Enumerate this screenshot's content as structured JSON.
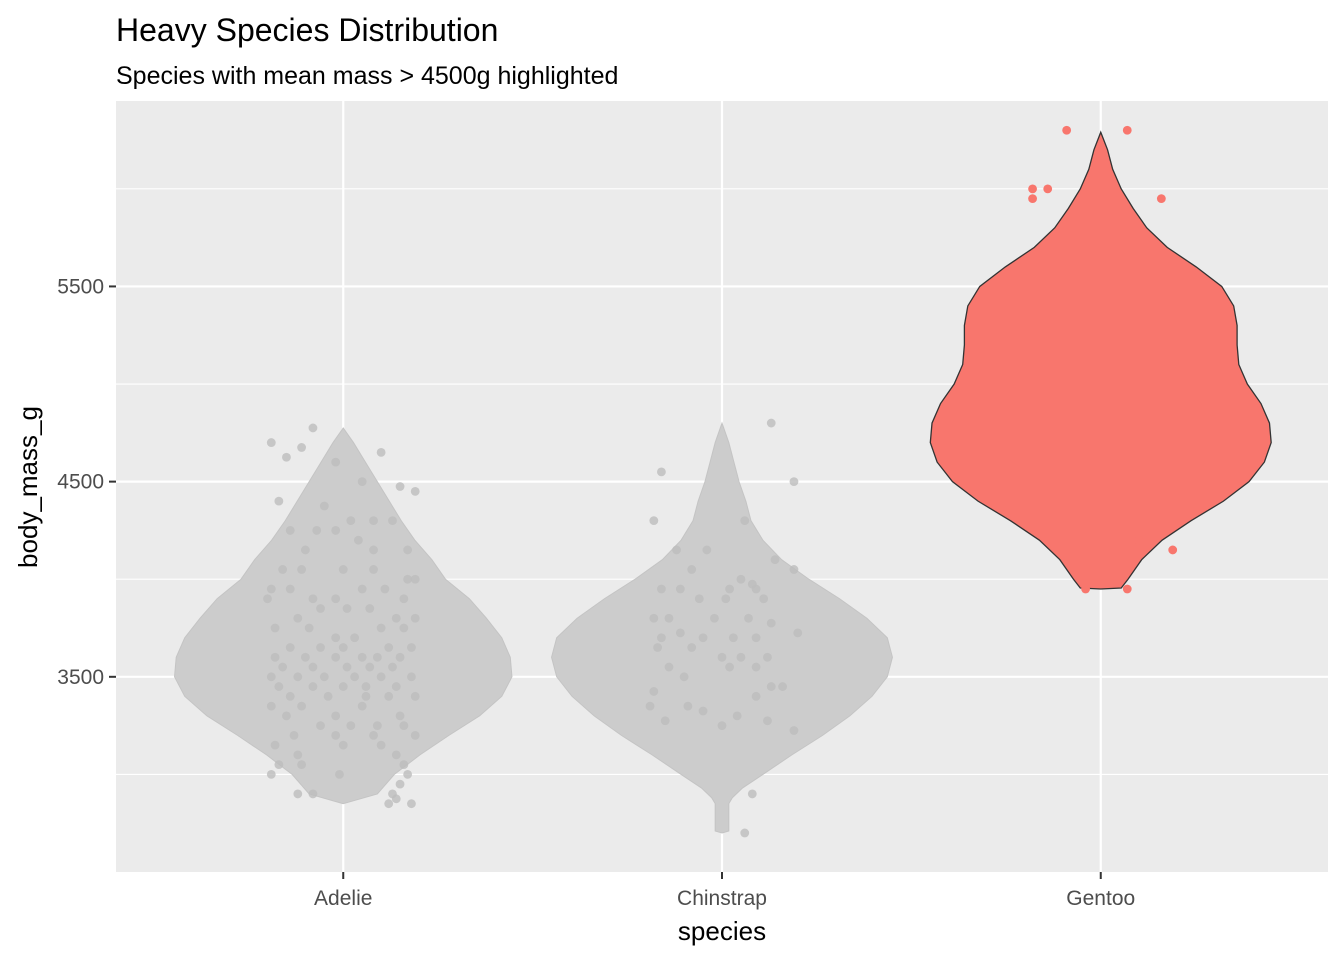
{
  "chart_data": {
    "type": "violin",
    "title": "Heavy Species Distribution",
    "subtitle": "Species with mean mass > 4500g highlighted",
    "xlabel": "species",
    "ylabel": "body_mass_g",
    "categories": [
      "Adelie",
      "Chinstrap",
      "Gentoo"
    ],
    "ylim": [
      2500,
      6450
    ],
    "yticks": [
      3500,
      4500,
      5500
    ],
    "grid": true,
    "colors": {
      "highlight": "#F8766D",
      "muted": "#CCCCCC",
      "panel": "#EBEBEB",
      "grid": "#FFFFFF"
    },
    "groups": [
      {
        "species": "Adelie",
        "highlighted": false,
        "violin": [
          [
            2850,
            0.0
          ],
          [
            2900,
            0.2
          ],
          [
            3000,
            0.3
          ],
          [
            3100,
            0.45
          ],
          [
            3200,
            0.62
          ],
          [
            3300,
            0.8
          ],
          [
            3400,
            0.93
          ],
          [
            3500,
            0.99
          ],
          [
            3600,
            0.98
          ],
          [
            3700,
            0.93
          ],
          [
            3800,
            0.84
          ],
          [
            3900,
            0.74
          ],
          [
            4000,
            0.6
          ],
          [
            4100,
            0.52
          ],
          [
            4200,
            0.42
          ],
          [
            4300,
            0.34
          ],
          [
            4400,
            0.27
          ],
          [
            4500,
            0.2
          ],
          [
            4600,
            0.13
          ],
          [
            4700,
            0.06
          ],
          [
            4775,
            0.0
          ]
        ],
        "points": [
          [
            -0.19,
            4700
          ],
          [
            -0.15,
            4625
          ],
          [
            -0.11,
            4675
          ],
          [
            -0.08,
            4775
          ],
          [
            -0.02,
            4600
          ],
          [
            0.1,
            4650
          ],
          [
            0.15,
            4475
          ],
          [
            0.19,
            4450
          ],
          [
            -0.17,
            4400
          ],
          [
            -0.05,
            4375
          ],
          [
            0.05,
            4500
          ],
          [
            -0.14,
            4250
          ],
          [
            -0.07,
            4250
          ],
          [
            0.02,
            4300
          ],
          [
            0.08,
            4300
          ],
          [
            0.13,
            4300
          ],
          [
            -0.02,
            4250
          ],
          [
            0.04,
            4200
          ],
          [
            0.17,
            4150
          ],
          [
            -0.1,
            4150
          ],
          [
            0.08,
            4150
          ],
          [
            -0.16,
            4050
          ],
          [
            -0.11,
            4050
          ],
          [
            0.0,
            4050
          ],
          [
            0.08,
            4050
          ],
          [
            0.17,
            4000
          ],
          [
            0.19,
            4000
          ],
          [
            -0.19,
            3950
          ],
          [
            -0.14,
            3950
          ],
          [
            -0.08,
            3900
          ],
          [
            -0.02,
            3900
          ],
          [
            0.05,
            3950
          ],
          [
            0.11,
            3950
          ],
          [
            0.16,
            3900
          ],
          [
            -0.2,
            3900
          ],
          [
            -0.12,
            3800
          ],
          [
            -0.06,
            3850
          ],
          [
            0.01,
            3850
          ],
          [
            0.07,
            3850
          ],
          [
            0.14,
            3800
          ],
          [
            0.19,
            3800
          ],
          [
            -0.18,
            3750
          ],
          [
            -0.09,
            3750
          ],
          [
            -0.02,
            3700
          ],
          [
            0.03,
            3700
          ],
          [
            0.1,
            3750
          ],
          [
            0.16,
            3750
          ],
          [
            -0.14,
            3650
          ],
          [
            -0.06,
            3650
          ],
          [
            0.0,
            3650
          ],
          [
            0.05,
            3600
          ],
          [
            0.12,
            3650
          ],
          [
            0.18,
            3650
          ],
          [
            -0.18,
            3600
          ],
          [
            -0.1,
            3600
          ],
          [
            -0.02,
            3600
          ],
          [
            0.09,
            3600
          ],
          [
            0.15,
            3600
          ],
          [
            -0.16,
            3550
          ],
          [
            -0.08,
            3550
          ],
          [
            0.01,
            3550
          ],
          [
            0.07,
            3550
          ],
          [
            0.13,
            3550
          ],
          [
            -0.19,
            3500
          ],
          [
            -0.12,
            3500
          ],
          [
            -0.05,
            3500
          ],
          [
            0.03,
            3500
          ],
          [
            0.1,
            3500
          ],
          [
            0.18,
            3500
          ],
          [
            -0.17,
            3450
          ],
          [
            -0.08,
            3450
          ],
          [
            0.0,
            3450
          ],
          [
            0.06,
            3450
          ],
          [
            0.14,
            3450
          ],
          [
            -0.14,
            3400
          ],
          [
            -0.04,
            3400
          ],
          [
            0.06,
            3400
          ],
          [
            0.12,
            3400
          ],
          [
            0.19,
            3400
          ],
          [
            -0.19,
            3350
          ],
          [
            -0.11,
            3350
          ],
          [
            -0.02,
            3300
          ],
          [
            0.05,
            3350
          ],
          [
            0.15,
            3300
          ],
          [
            -0.15,
            3300
          ],
          [
            -0.06,
            3250
          ],
          [
            0.02,
            3250
          ],
          [
            0.09,
            3250
          ],
          [
            0.16,
            3250
          ],
          [
            -0.13,
            3200
          ],
          [
            -0.02,
            3200
          ],
          [
            0.08,
            3200
          ],
          [
            0.19,
            3200
          ],
          [
            -0.18,
            3150
          ],
          [
            -0.12,
            3100
          ],
          [
            0.0,
            3150
          ],
          [
            0.1,
            3150
          ],
          [
            0.14,
            3100
          ],
          [
            -0.17,
            3050
          ],
          [
            -0.11,
            3050
          ],
          [
            -0.19,
            3000
          ],
          [
            0.16,
            3050
          ],
          [
            0.17,
            3000
          ],
          [
            -0.01,
            3000
          ],
          [
            0.15,
            2950
          ],
          [
            -0.12,
            2900
          ],
          [
            -0.08,
            2900
          ],
          [
            0.13,
            2900
          ],
          [
            0.14,
            2875
          ],
          [
            0.12,
            2850
          ],
          [
            0.18,
            2850
          ]
        ]
      },
      {
        "species": "Chinstrap",
        "highlighted": false,
        "violin": [
          [
            2700,
            0.0
          ],
          [
            2710,
            0.04
          ],
          [
            2800,
            0.04
          ],
          [
            2850,
            0.04
          ],
          [
            2880,
            0.06
          ],
          [
            2930,
            0.12
          ],
          [
            3000,
            0.24
          ],
          [
            3100,
            0.41
          ],
          [
            3200,
            0.59
          ],
          [
            3300,
            0.75
          ],
          [
            3400,
            0.88
          ],
          [
            3500,
            0.97
          ],
          [
            3600,
            1.0
          ],
          [
            3700,
            0.97
          ],
          [
            3800,
            0.85
          ],
          [
            3900,
            0.69
          ],
          [
            4000,
            0.51
          ],
          [
            4100,
            0.35
          ],
          [
            4200,
            0.24
          ],
          [
            4300,
            0.17
          ],
          [
            4400,
            0.14
          ],
          [
            4500,
            0.1
          ],
          [
            4600,
            0.07
          ],
          [
            4700,
            0.04
          ],
          [
            4800,
            0.0
          ]
        ],
        "points": [
          [
            -0.16,
            4550
          ],
          [
            0.13,
            4800
          ],
          [
            0.19,
            4500
          ],
          [
            -0.18,
            4300
          ],
          [
            0.06,
            4300
          ],
          [
            -0.12,
            4150
          ],
          [
            -0.04,
            4150
          ],
          [
            0.14,
            4100
          ],
          [
            0.19,
            4050
          ],
          [
            -0.08,
            4050
          ],
          [
            0.05,
            4000
          ],
          [
            0.08,
            3975
          ],
          [
            -0.16,
            3950
          ],
          [
            -0.11,
            3950
          ],
          [
            0.02,
            3950
          ],
          [
            0.09,
            3950
          ],
          [
            -0.06,
            3900
          ],
          [
            0.01,
            3900
          ],
          [
            0.11,
            3900
          ],
          [
            -0.18,
            3800
          ],
          [
            -0.14,
            3800
          ],
          [
            -0.02,
            3800
          ],
          [
            0.07,
            3800
          ],
          [
            0.13,
            3775
          ],
          [
            0.2,
            3725
          ],
          [
            -0.16,
            3700
          ],
          [
            -0.11,
            3725
          ],
          [
            -0.05,
            3700
          ],
          [
            0.03,
            3700
          ],
          [
            0.09,
            3700
          ],
          [
            -0.17,
            3650
          ],
          [
            -0.08,
            3650
          ],
          [
            0.0,
            3600
          ],
          [
            0.05,
            3600
          ],
          [
            0.12,
            3600
          ],
          [
            -0.14,
            3550
          ],
          [
            0.02,
            3550
          ],
          [
            0.09,
            3550
          ],
          [
            -0.1,
            3500
          ],
          [
            0.13,
            3450
          ],
          [
            0.16,
            3450
          ],
          [
            -0.18,
            3425
          ],
          [
            0.09,
            3400
          ],
          [
            -0.19,
            3350
          ],
          [
            -0.09,
            3350
          ],
          [
            -0.05,
            3325
          ],
          [
            0.04,
            3300
          ],
          [
            0.12,
            3275
          ],
          [
            -0.15,
            3275
          ],
          [
            0.19,
            3225
          ],
          [
            0.0,
            3250
          ],
          [
            0.08,
            2900
          ],
          [
            0.06,
            2700
          ]
        ]
      },
      {
        "species": "Gentoo",
        "highlighted": true,
        "violin": [
          [
            3950,
            0.0
          ],
          [
            3955,
            0.12
          ],
          [
            4000,
            0.16
          ],
          [
            4100,
            0.24
          ],
          [
            4200,
            0.36
          ],
          [
            4300,
            0.53
          ],
          [
            4400,
            0.72
          ],
          [
            4500,
            0.87
          ],
          [
            4600,
            0.96
          ],
          [
            4700,
            1.0
          ],
          [
            4800,
            0.99
          ],
          [
            4900,
            0.94
          ],
          [
            5000,
            0.86
          ],
          [
            5100,
            0.81
          ],
          [
            5200,
            0.8
          ],
          [
            5300,
            0.8
          ],
          [
            5400,
            0.78
          ],
          [
            5500,
            0.71
          ],
          [
            5600,
            0.56
          ],
          [
            5700,
            0.39
          ],
          [
            5800,
            0.27
          ],
          [
            5900,
            0.19
          ],
          [
            6000,
            0.12
          ],
          [
            6100,
            0.07
          ],
          [
            6200,
            0.04
          ],
          [
            6290,
            0.0
          ]
        ],
        "points": [
          [
            -0.09,
            6300
          ],
          [
            0.07,
            6300
          ],
          [
            -0.18,
            6000
          ],
          [
            -0.14,
            6000
          ],
          [
            -0.18,
            5950
          ],
          [
            0.16,
            5950
          ],
          [
            0.1,
            4200
          ],
          [
            0.19,
            4150
          ],
          [
            -0.04,
            3950
          ],
          [
            0.07,
            3950
          ]
        ]
      }
    ]
  }
}
